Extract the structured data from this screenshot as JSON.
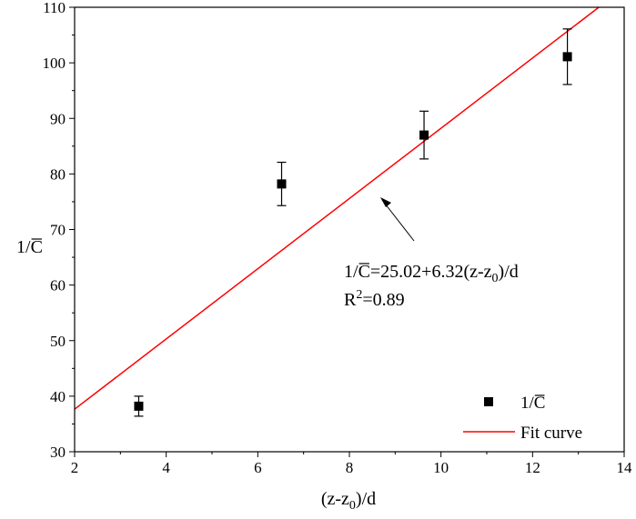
{
  "chart_data": {
    "type": "scatter",
    "xlabel": {
      "main": "(z-z",
      "sub": "0",
      "tail": ")/d"
    },
    "ylabel": {
      "prefix": "1/",
      "over": "C"
    },
    "xlim": [
      2,
      14
    ],
    "ylim": [
      30,
      110
    ],
    "xticks": [
      2,
      4,
      6,
      8,
      10,
      12,
      14
    ],
    "yticks": [
      30,
      40,
      50,
      60,
      70,
      80,
      90,
      100,
      110
    ],
    "series": [
      {
        "name": "1/C",
        "marker": "square",
        "color": "#000000",
        "points": [
          {
            "x": 3.4,
            "y": 38.2,
            "err": 1.8
          },
          {
            "x": 6.52,
            "y": 78.2,
            "err": 3.9
          },
          {
            "x": 9.63,
            "y": 87.0,
            "err": 4.3
          },
          {
            "x": 12.76,
            "y": 101.1,
            "err": 5.0
          }
        ]
      }
    ],
    "fit": {
      "name": "Fit curve",
      "color": "#ff0000",
      "intercept": 25.02,
      "slope": 6.32
    },
    "annotation": {
      "eq_prefix": "1/",
      "eq_over": "C",
      "eq_main": "=25.02+6.32(z-z",
      "eq_sub": "0",
      "eq_tail": ")/d",
      "r2_main": "R",
      "r2_sup": "2",
      "r2_tail": "=0.89"
    },
    "legend": {
      "position": "bottom-right",
      "entries": [
        {
          "prefix": "1/",
          "over": "C"
        },
        {
          "label": "Fit curve"
        }
      ]
    },
    "grid": false
  }
}
